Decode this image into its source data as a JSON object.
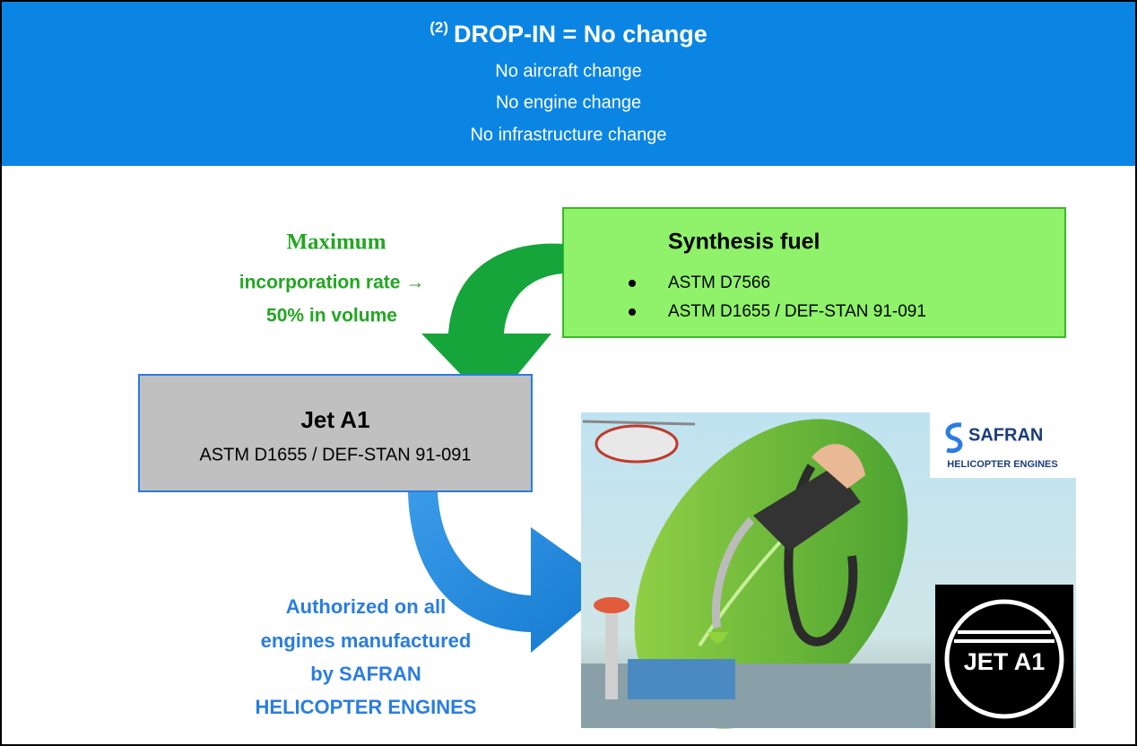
{
  "header": {
    "note": "(2)",
    "title": "DROP-IN = No change",
    "lines": [
      "No aircraft change",
      "No engine change",
      "No infrastructure change"
    ]
  },
  "synthesis_fuel": {
    "title": "Synthesis fuel",
    "items": [
      "ASTM D7566",
      "ASTM D1655 / DEF-STAN 91-091"
    ]
  },
  "incorporation": {
    "lines": [
      "Maximum",
      "incorporation rate →",
      "50% in volume"
    ]
  },
  "jet_a1": {
    "title": "Jet A1",
    "spec": "ASTM D1655 / DEF-STAN 91-091"
  },
  "authorization": {
    "lines": [
      "Authorized on all",
      "engines manufactured",
      "by SAFRAN",
      "HELICOPTER ENGINES"
    ]
  },
  "logo": {
    "name": "SAFRAN",
    "subtitle": "HELICOPTER ENGINES"
  },
  "badge": {
    "label": "JET A1"
  }
}
